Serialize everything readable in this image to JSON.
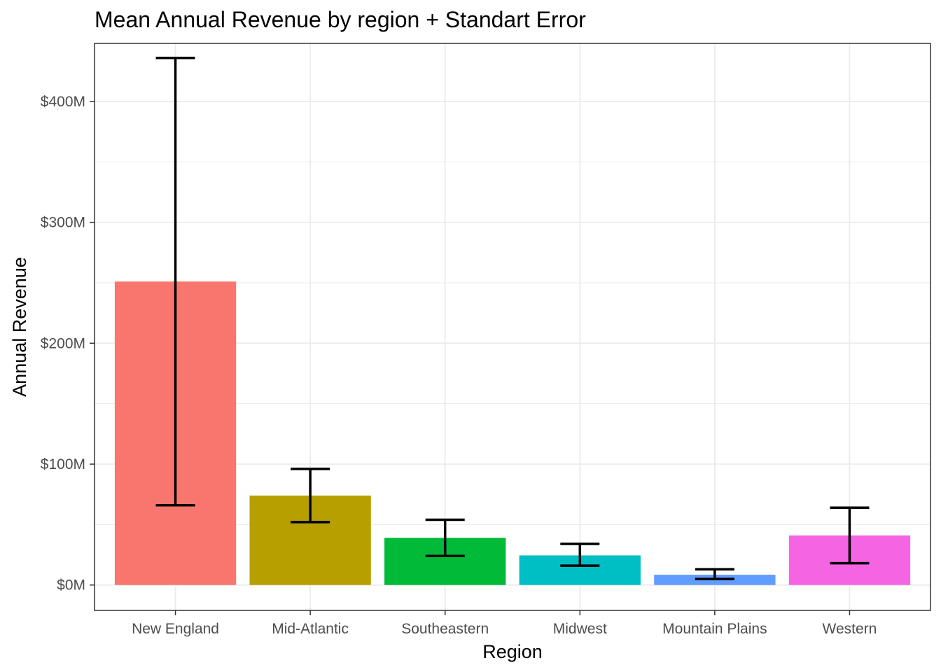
{
  "chart_data": {
    "type": "bar",
    "title": "Mean Annual Revenue by region + Standart Error",
    "xlabel": "Region",
    "ylabel": "Annual Revenue",
    "categories": [
      "New England",
      "Mid-Atlantic",
      "Southeastern",
      "Midwest",
      "Mountain Plains",
      "Western"
    ],
    "values": [
      251,
      74,
      39,
      24.5,
      8.5,
      41
    ],
    "error_lower": [
      66,
      52,
      24,
      16,
      5,
      18
    ],
    "error_upper": [
      436,
      96,
      54,
      34,
      13,
      64
    ],
    "colors": [
      "#F8766D",
      "#B79F00",
      "#00BA38",
      "#00BFC4",
      "#619CFF",
      "#F564E3"
    ],
    "y_ticks": [
      0,
      100,
      200,
      300,
      400
    ],
    "y_tick_labels": [
      "$0M",
      "$100M",
      "$200M",
      "$300M",
      "$400M"
    ],
    "ylim": [
      -21,
      448
    ],
    "grid": true,
    "legend": "none"
  }
}
